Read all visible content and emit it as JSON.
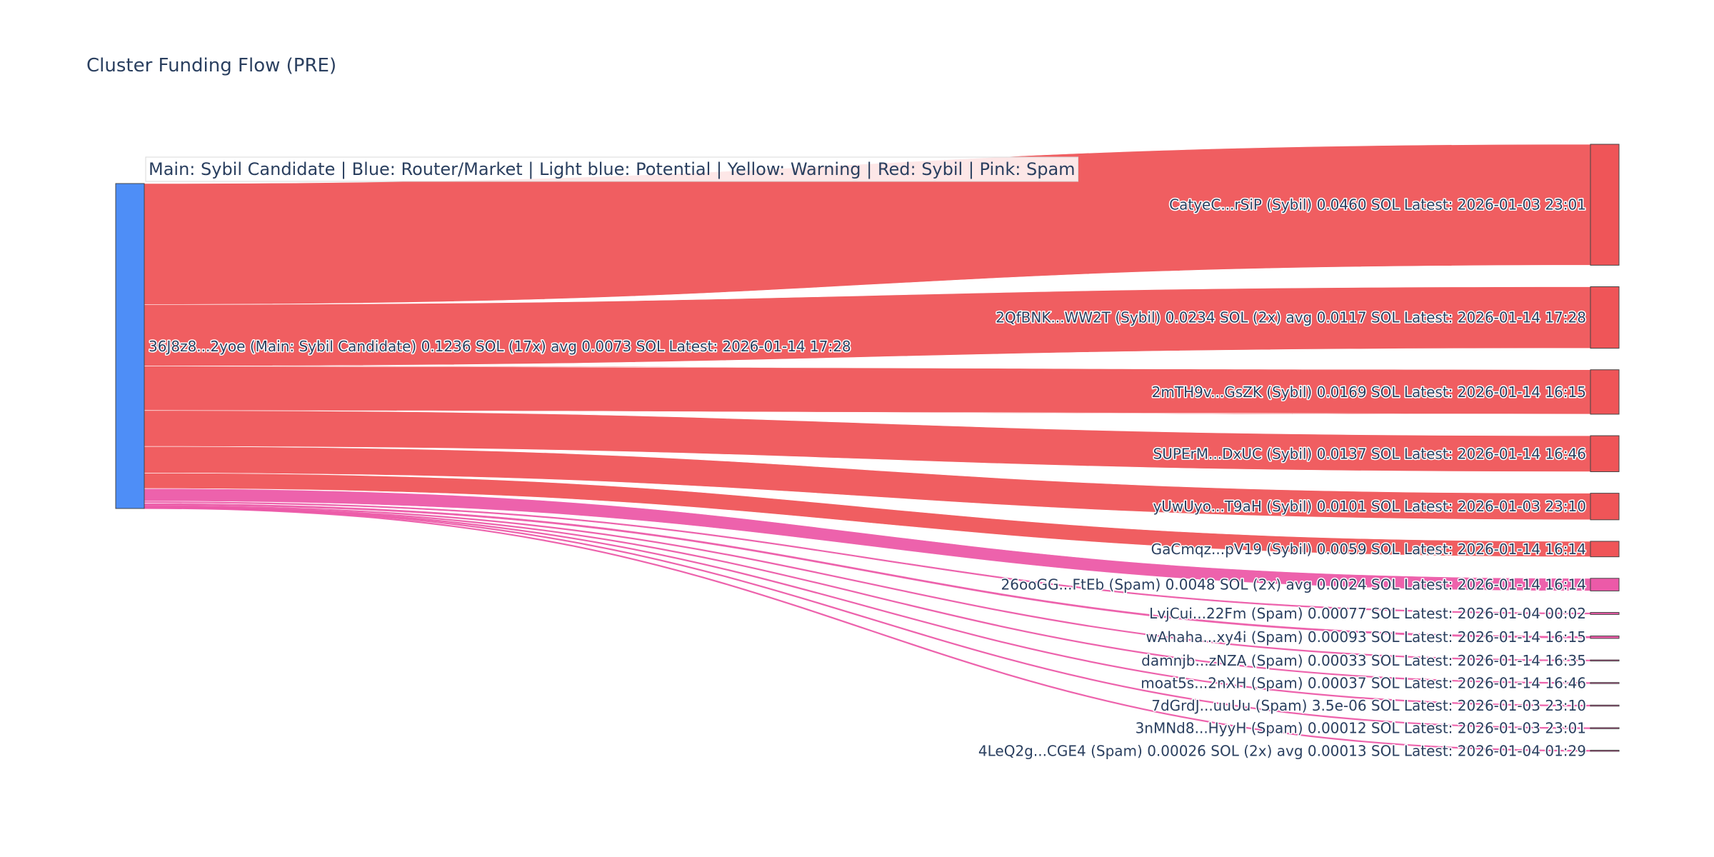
{
  "chart_data": {
    "type": "sankey",
    "title": "Cluster Funding Flow (PRE)",
    "legend": "Main: Sybil Candidate  |  Blue: Router/Market | Light blue: Potential | Yellow: Warning | Red: Sybil | Pink: Spam",
    "colors": {
      "source": "#4e8ef7",
      "sybil": "#ef5558",
      "spam": "#ec5aa8",
      "node_border": "#444444",
      "title": "#2a3f5f"
    },
    "source": {
      "label": "36J8z8...2yoe (Main: Sybil Candidate) 0.1236 SOL (17x) avg 0.0073 SOL Latest: 2026-01-14 17:28",
      "category": "main",
      "value": 0.1236
    },
    "targets": [
      {
        "label": "CatyeC...rSiP (Sybil) 0.0460 SOL Latest: 2026-01-03 23:01",
        "category": "sybil",
        "value": 0.046
      },
      {
        "label": "2QfBNK...WW2T (Sybil) 0.0234 SOL (2x) avg 0.0117 SOL Latest: 2026-01-14 17:28",
        "category": "sybil",
        "value": 0.0234
      },
      {
        "label": "2mTH9v...GsZK (Sybil) 0.0169 SOL Latest: 2026-01-14 16:15",
        "category": "sybil",
        "value": 0.0169
      },
      {
        "label": "SUPErM...DxUC (Sybil) 0.0137 SOL Latest: 2026-01-14 16:46",
        "category": "sybil",
        "value": 0.0137
      },
      {
        "label": "yUwUyo...T9aH (Sybil) 0.0101 SOL Latest: 2026-01-03 23:10",
        "category": "sybil",
        "value": 0.0101
      },
      {
        "label": "GaCmqz...pV19 (Sybil) 0.0059 SOL Latest: 2026-01-14 16:14",
        "category": "sybil",
        "value": 0.0059
      },
      {
        "label": "26ooGG...FtEb (Spam) 0.0048 SOL (2x) avg 0.0024 SOL Latest: 2026-01-14 16:14",
        "category": "spam",
        "value": 0.0048
      },
      {
        "label": "LvjCui...22Fm (Spam) 0.00077 SOL Latest: 2026-01-04 00:02",
        "category": "spam",
        "value": 0.00077
      },
      {
        "label": "wAhaha...xy4i (Spam) 0.00093 SOL Latest: 2026-01-14 16:15",
        "category": "spam",
        "value": 0.00093
      },
      {
        "label": "damnjb...zNZA (Spam) 0.00033 SOL Latest: 2026-01-14 16:35",
        "category": "spam",
        "value": 0.00033
      },
      {
        "label": "moat5s...2nXH (Spam) 0.00037 SOL Latest: 2026-01-14 16:46",
        "category": "spam",
        "value": 0.00037
      },
      {
        "label": "7dGrdJ...uuUu (Spam) 3.5e-06 SOL Latest: 2026-01-03 23:10",
        "category": "spam",
        "value": 3.5e-06
      },
      {
        "label": "3nMNd8...HyyH (Spam) 0.00012 SOL Latest: 2026-01-03 23:01",
        "category": "spam",
        "value": 0.00012
      },
      {
        "label": "4LeQ2g...CGE4 (Spam) 0.00026 SOL (2x) avg 0.00013 SOL Latest: 2026-01-04 01:29",
        "category": "spam",
        "value": 0.00026
      }
    ]
  }
}
